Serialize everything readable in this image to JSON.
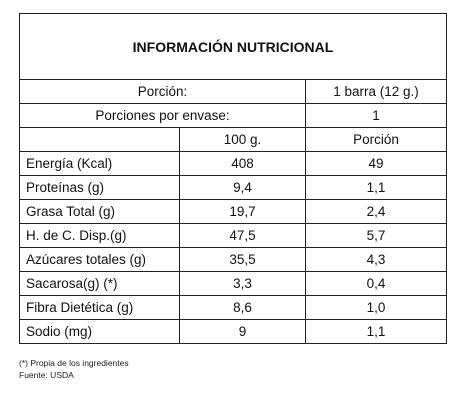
{
  "title": "INFORMACIÓN NUTRICIONAL",
  "portion": {
    "label": "Porción:",
    "value": "1 barra (12 g.)"
  },
  "servings": {
    "label": "Porciones por envase:",
    "value": "1"
  },
  "columns": {
    "per100": "100 g.",
    "perPortion": "Porción"
  },
  "rows": [
    {
      "name": "Energía (Kcal)",
      "per100": "408",
      "perPortion": "49"
    },
    {
      "name": "Proteínas (g)",
      "per100": "9,4",
      "perPortion": "1,1"
    },
    {
      "name": "Grasa Total (g)",
      "per100": "19,7",
      "perPortion": "2,4"
    },
    {
      "name": "H. de C. Disp.(g)",
      "per100": "47,5",
      "perPortion": "5,7"
    },
    {
      "name": "Azúcares totales (g)",
      "per100": "35,5",
      "perPortion": "4,3"
    },
    {
      "name": "Sacarosa(g) (*)",
      "per100": "3,3",
      "perPortion": "0,4"
    },
    {
      "name": "Fibra Dietética (g)",
      "per100": "8,6",
      "perPortion": "1,0"
    },
    {
      "name": "Sodio (mg)",
      "per100": "9",
      "perPortion": "1,1"
    }
  ],
  "footnote": "(*) Propia de los ingredientes",
  "source": "Fuente: USDA"
}
